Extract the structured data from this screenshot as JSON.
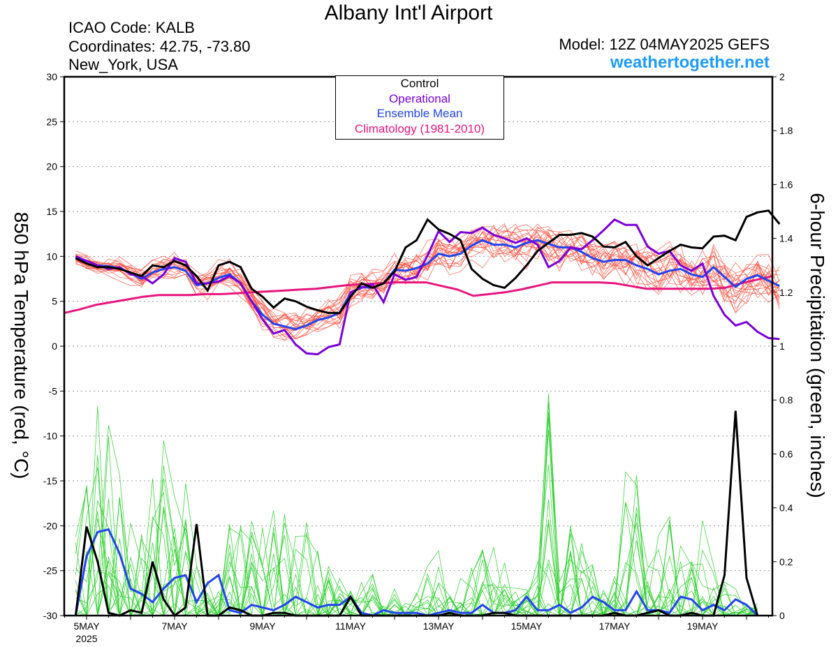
{
  "header": {
    "title": "Albany Int'l Airport",
    "icao": "ICAO Code: KALB",
    "coordinates": "Coordinates: 42.75, -73.80",
    "location": "New_York, USA",
    "model": "Model: 12Z 04MAY2025 GEFS",
    "site": "weathertogether.net"
  },
  "legend": {
    "control": "Control",
    "operational": "Operational",
    "ensemble_mean": "Ensemble Mean",
    "climatology": "Climatology (1981-2010)"
  },
  "colors": {
    "control": "#000000",
    "operational": "#7a00d8",
    "ensemble_mean": "#2244ee",
    "climatology": "#e8157d",
    "members_temp": "#ff4433",
    "members_precip": "#22cc22"
  },
  "chart_data": {
    "type": "line",
    "title": "Albany Int'l Airport",
    "ylabel": "850 hPa Temperature (red, °C)",
    "y2label": "6-hour Precipitation (green, inches)",
    "xlim_hours": [
      12,
      168
    ],
    "ylim": [
      -30,
      30
    ],
    "y2lim": [
      0,
      2
    ],
    "yticks": [
      30,
      25,
      20,
      15,
      10,
      5,
      0,
      -5,
      -10,
      -15,
      -20,
      -25,
      -30
    ],
    "y2ticks": [
      2,
      1.8,
      1.6,
      1.4,
      1.2,
      1,
      0.8,
      0.6,
      0.4,
      0.2,
      0
    ],
    "xticks": [
      {
        "label": "5MAY",
        "sub": "2025",
        "hour": 12
      },
      {
        "label": "7MAY",
        "sub": "",
        "hour": 60
      },
      {
        "label": "9MAY",
        "sub": "",
        "hour": 108
      },
      {
        "label": "11MAY",
        "sub": "",
        "hour": 156
      },
      {
        "label": "13MAY",
        "sub": "",
        "hour": 204
      },
      {
        "label": "15MAY",
        "sub": "",
        "hour": 252
      },
      {
        "label": "17MAY",
        "sub": "",
        "hour": 300
      },
      {
        "label": "19MAY",
        "sub": "",
        "hour": 348
      }
    ],
    "grid": true,
    "step_hours": 6,
    "start_hour": 6,
    "temperature": {
      "control": [
        9.8,
        9.2,
        8.8,
        8.8,
        8.6,
        8.2,
        7.8,
        9,
        8.8,
        9.5,
        9.0,
        7.8,
        6.2,
        9,
        9.4,
        8.8,
        6.4,
        5.5,
        4.3,
        5.3,
        5.0,
        4.4,
        4.0,
        3.7,
        3.7,
        5.5,
        7.0,
        6.5,
        7.0,
        8.3,
        11,
        11.8,
        14.1,
        13.0,
        12.5,
        11.8,
        8.6,
        7.5,
        6.8,
        6.5,
        7.6,
        9.0,
        10.6,
        11.5,
        12.4,
        12.4,
        12.6,
        12.2,
        11.1,
        11.0,
        11.6,
        10.0,
        9.0,
        9.8,
        10.6,
        11.3,
        11.0,
        10.9,
        12.2,
        12.3,
        11.8,
        14.4,
        14.9,
        15.1,
        13.6
      ],
      "operational": [
        10,
        9.5,
        9,
        8.6,
        8.8,
        8.0,
        7.8,
        7.0,
        8.0,
        9.8,
        9.4,
        7.0,
        7.0,
        7.2,
        7.8,
        7.0,
        5.0,
        3.0,
        1.4,
        1.8,
        0.2,
        -0.8,
        -0.9,
        -0.1,
        0.2,
        6.0,
        6.5,
        6.9,
        4.9,
        8.0,
        7.4,
        7.7,
        10.1,
        12.8,
        11.6,
        12.7,
        12.6,
        13.2,
        12.4,
        12.0,
        11.5,
        12.0,
        11.3,
        8.8,
        9.5,
        11.0,
        10.8,
        11.8,
        12.9,
        14.1,
        13.5,
        13.5,
        11.1,
        10.3,
        10.6,
        9.0,
        8.4,
        9.2,
        5.6,
        3.5,
        2.3,
        2.7,
        1.6,
        0.9,
        0.8
      ],
      "ensemble_mean": [
        9.9,
        9.5,
        9.0,
        8.9,
        8.7,
        8.1,
        7.5,
        8.2,
        8.6,
        8.8,
        8.4,
        6.8,
        7.0,
        7.6,
        8.0,
        7.0,
        5.0,
        3.5,
        2.5,
        2.2,
        1.9,
        2.3,
        2.9,
        3.2,
        3.7,
        5.9,
        6.6,
        6.5,
        7.0,
        8.5,
        8.4,
        8.7,
        9.2,
        10.3,
        10.0,
        10.3,
        11.2,
        11.8,
        11.3,
        11.3,
        11.0,
        11.5,
        11.8,
        11.4,
        11.0,
        11.0,
        10.5,
        9.8,
        9.4,
        9.6,
        9.6,
        9.0,
        8.6,
        8.0,
        8.4,
        8.6,
        8.0,
        7.7,
        8.8,
        7.7,
        6.6,
        7.5,
        7.9,
        7.3,
        6.7
      ],
      "climatology": [
        3.7,
        4.1,
        4.6,
        4.9,
        5.2,
        5.5,
        5.7,
        5.7,
        5.7,
        5.8,
        5.8,
        5.9,
        6.0,
        6.1,
        6.2,
        6.3,
        6.4,
        6.6,
        6.8,
        6.9,
        7.0,
        7.1,
        7.1,
        7.1,
        6.7,
        6.3,
        5.6,
        5.8,
        6.0,
        6.3,
        6.7,
        7.1,
        7.1,
        7.1,
        7.1,
        7.0,
        6.7,
        6.4,
        6.4,
        6.4,
        6.4,
        6.4,
        6.5,
        7.0,
        7.4,
        7.8
      ],
      "member_spread": 2.5,
      "member_count": 20
    },
    "precipitation": {
      "control": [
        0,
        0.33,
        0.2,
        0.01,
        0,
        0.02,
        0.01,
        0.2,
        0.06,
        0,
        0.03,
        0.34,
        0,
        0,
        0.03,
        0.02,
        0,
        0,
        0.01,
        0.01,
        0,
        0,
        0,
        0,
        0,
        0.07,
        0,
        0,
        0,
        0,
        0,
        0,
        0,
        0,
        0.01,
        0,
        0,
        0,
        0.01,
        0.01,
        0,
        0,
        0,
        0,
        0,
        0,
        0,
        0,
        0,
        0.01,
        0,
        0,
        0.01,
        0.02,
        0,
        0,
        0.01,
        0,
        0,
        0.15,
        0.76,
        0.14,
        0
      ],
      "ensemble_mean": [
        0,
        0.22,
        0.31,
        0.32,
        0.23,
        0.1,
        0.08,
        0.05,
        0.1,
        0.14,
        0.15,
        0.05,
        0.12,
        0.15,
        0.02,
        0.01,
        0.04,
        0.03,
        0.02,
        0.04,
        0.07,
        0.05,
        0.03,
        0.04,
        0.04,
        0.07,
        0.01,
        0,
        0.02,
        0.01,
        0.01,
        0.01,
        0,
        0.01,
        0.02,
        0.01,
        0.01,
        0.04,
        0.01,
        0.01,
        0.02,
        0.07,
        0.02,
        0.02,
        0.04,
        0.01,
        0.03,
        0.07,
        0.05,
        0.02,
        0.02,
        0.09,
        0.02,
        0.02,
        0.01,
        0.07,
        0.06,
        0.02,
        0.04,
        0.02,
        0.06,
        0.04,
        0
      ],
      "member_max": [
        0.3,
        0.5,
        0.85,
        0.75,
        0.55,
        0.4,
        0.35,
        0.55,
        0.65,
        0.45,
        0.5,
        0.2,
        0.15,
        0.1,
        0.4,
        0.45,
        0.5,
        0.38,
        0.42,
        0.48,
        0.3,
        0.45,
        0.25,
        0.2,
        0.15,
        0.1,
        0.15,
        0.2,
        0.05,
        0.1,
        0.05,
        0.1,
        0.2,
        0.25,
        0.1,
        0.15,
        0.2,
        0.25,
        0.3,
        0.2,
        0.15,
        0.1,
        0.25,
        0.98,
        0.15,
        0.35,
        0.3,
        0.2,
        0.1,
        0.15,
        0.55,
        0.55,
        0.2,
        0.3,
        0.4,
        0.3,
        0.2,
        0.4,
        0.2,
        0.15,
        0.1,
        0.05,
        0.05
      ]
    }
  }
}
